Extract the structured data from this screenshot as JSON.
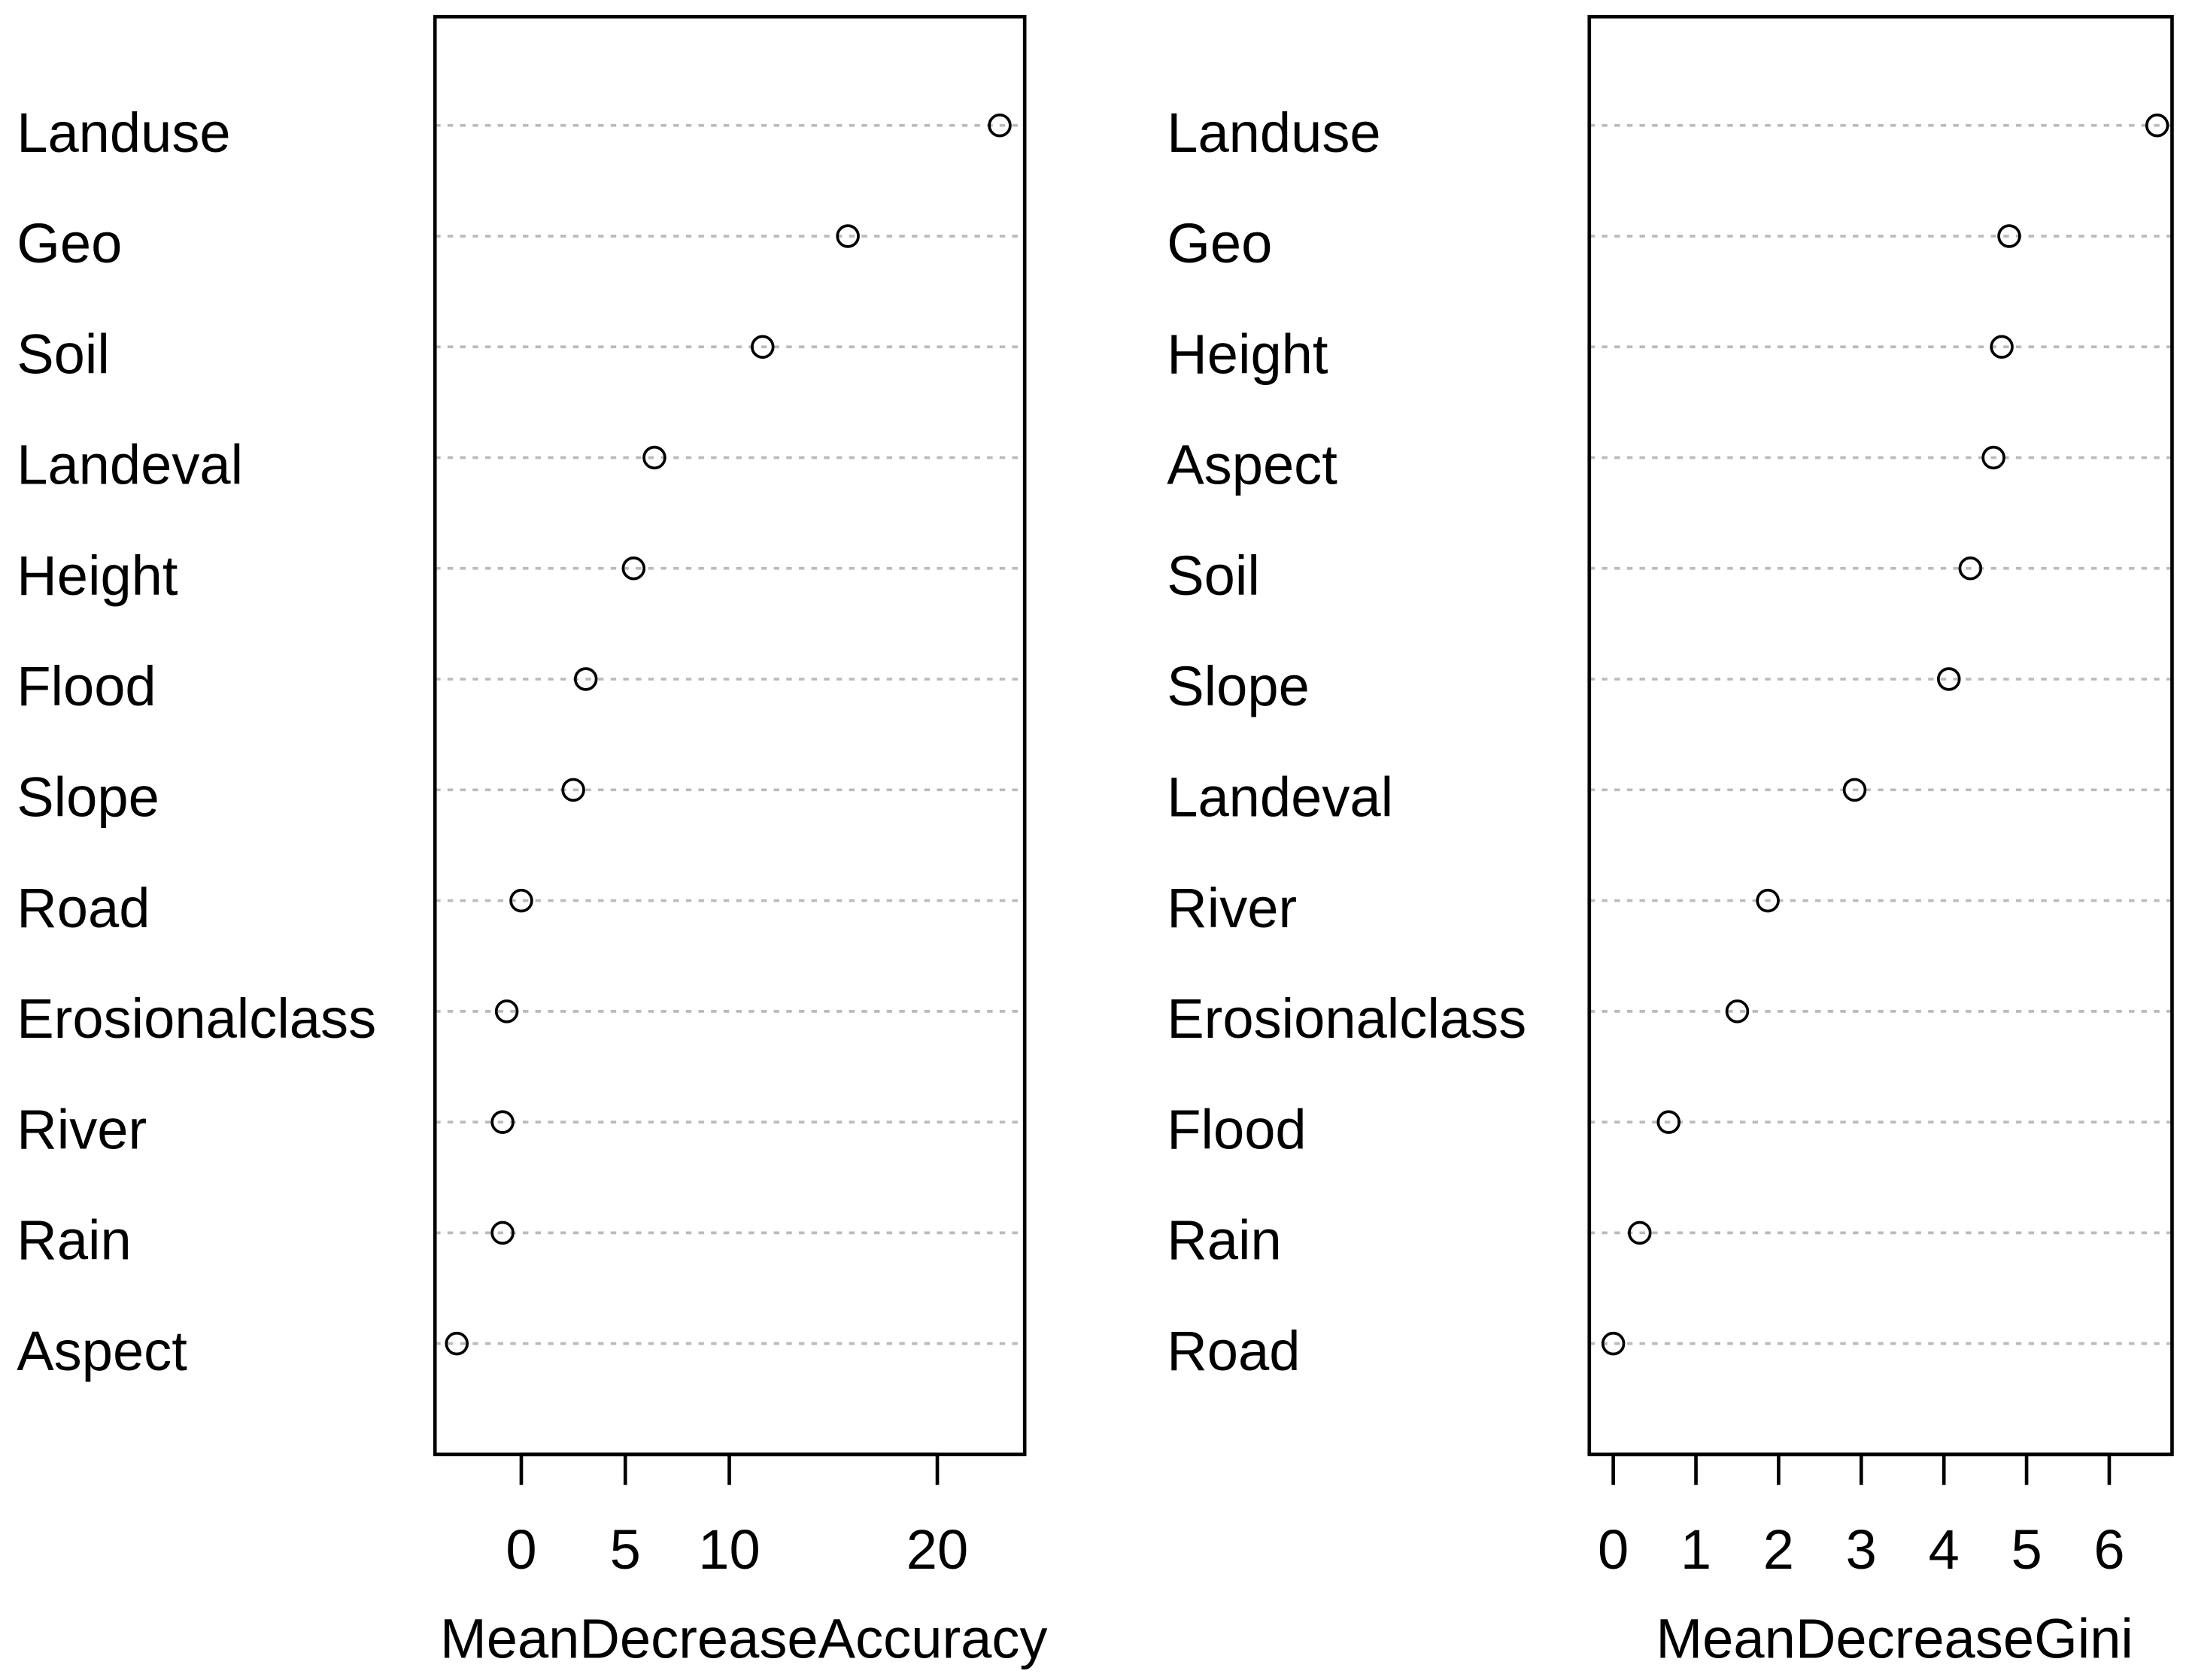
{
  "chart_data": [
    {
      "type": "dot",
      "x_label": "MeanDecreaseAccuracy",
      "categories": [
        "Landuse",
        "Geo",
        "Soil",
        "Landeval",
        "Height",
        "Flood",
        "Slope",
        "Road",
        "Erosionalclass",
        "River",
        "Rain",
        "Aspect"
      ],
      "values": [
        23.0,
        15.7,
        11.6,
        6.4,
        5.4,
        3.1,
        2.5,
        0,
        -0.7,
        -0.9,
        -0.9,
        -3.1
      ],
      "xlim": [
        -4.15,
        24.2
      ],
      "xticks": [
        0,
        5,
        10,
        20
      ],
      "grid": true,
      "color": "#000000"
    },
    {
      "type": "dot",
      "x_label": "MeanDecreaseGini",
      "categories": [
        "Landuse",
        "Geo",
        "Height",
        "Aspect",
        "Soil",
        "Slope",
        "Landeval",
        "River",
        "Erosionalclass",
        "Flood",
        "Rain",
        "Road"
      ],
      "values": [
        6.58,
        4.79,
        4.7,
        4.6,
        4.32,
        4.06,
        2.92,
        1.87,
        1.5,
        0.67,
        0.32,
        0
      ],
      "xlim": [
        -0.29,
        6.76
      ],
      "xticks": [
        0,
        1,
        2,
        3,
        4,
        5,
        6
      ],
      "grid": true,
      "color": "#000000"
    }
  ]
}
